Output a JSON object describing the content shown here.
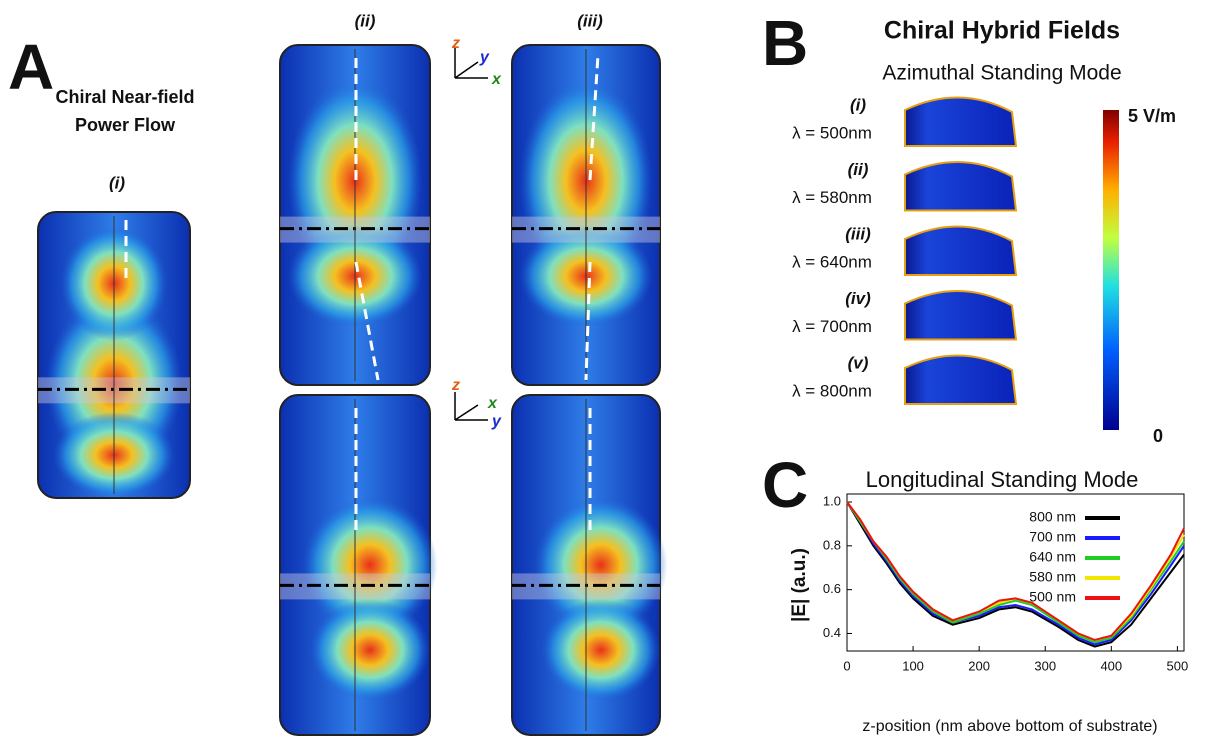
{
  "panel_a": {
    "letter": "A",
    "title_lines": [
      "Chiral Near-field",
      "Power Flow"
    ],
    "labels": [
      "(i)",
      "(ii)",
      "(iii)"
    ],
    "axes_top": [
      "z",
      "y",
      "x"
    ],
    "axes_bottom": [
      "z",
      "x",
      "y"
    ]
  },
  "panel_b": {
    "letter": "B",
    "title": "Chiral Hybrid Fields",
    "subtitle": "Azimuthal Standing Mode",
    "rows": [
      {
        "label": "(i)",
        "wavelength": "λ = 500nm"
      },
      {
        "label": "(ii)",
        "wavelength": "λ = 580nm"
      },
      {
        "label": "(iii)",
        "wavelength": "λ = 640nm"
      },
      {
        "label": "(iv)",
        "wavelength": "λ = 700nm"
      },
      {
        "label": "(v)",
        "wavelength": "λ = 800nm"
      }
    ],
    "colorbar_max": "5 V/m",
    "colorbar_min": "0"
  },
  "panel_c": {
    "letter": "C"
  },
  "chart_data": {
    "type": "line",
    "title": "Longitudinal Standing Mode",
    "x_label": "z-position (nm above bottom of substrate)",
    "y_label": "|E| (a.u.)",
    "x": [
      0,
      20,
      40,
      60,
      80,
      100,
      130,
      160,
      200,
      230,
      255,
      280,
      320,
      350,
      375,
      400,
      430,
      460,
      490,
      510
    ],
    "series": [
      {
        "name": "800 nm",
        "color": "#000000",
        "values": [
          1.0,
          0.9,
          0.8,
          0.72,
          0.63,
          0.56,
          0.48,
          0.44,
          0.47,
          0.51,
          0.52,
          0.5,
          0.43,
          0.37,
          0.34,
          0.36,
          0.44,
          0.56,
          0.68,
          0.76
        ]
      },
      {
        "name": "700 nm",
        "color": "#1a1aff",
        "values": [
          1.0,
          0.91,
          0.81,
          0.73,
          0.64,
          0.57,
          0.49,
          0.45,
          0.48,
          0.52,
          0.53,
          0.51,
          0.44,
          0.38,
          0.35,
          0.37,
          0.46,
          0.58,
          0.71,
          0.8
        ]
      },
      {
        "name": "640 nm",
        "color": "#22cc22",
        "values": [
          1.0,
          0.91,
          0.82,
          0.74,
          0.65,
          0.58,
          0.5,
          0.45,
          0.49,
          0.53,
          0.55,
          0.53,
          0.45,
          0.39,
          0.36,
          0.38,
          0.47,
          0.6,
          0.73,
          0.82
        ]
      },
      {
        "name": "580 nm",
        "color": "#f2e600",
        "values": [
          1.0,
          0.92,
          0.82,
          0.75,
          0.66,
          0.59,
          0.51,
          0.46,
          0.5,
          0.54,
          0.56,
          0.54,
          0.46,
          0.4,
          0.37,
          0.39,
          0.48,
          0.61,
          0.75,
          0.85
        ]
      },
      {
        "name": "500 nm",
        "color": "#ee1111",
        "values": [
          1.0,
          0.92,
          0.82,
          0.75,
          0.66,
          0.59,
          0.51,
          0.46,
          0.5,
          0.55,
          0.56,
          0.54,
          0.46,
          0.4,
          0.37,
          0.39,
          0.49,
          0.62,
          0.76,
          0.88
        ]
      }
    ],
    "xlim": [
      0,
      510
    ],
    "ylim": [
      0.32,
      1.0
    ],
    "xticks": [
      0,
      100,
      200,
      300,
      400,
      500
    ],
    "yticks": [
      0.4,
      0.6,
      0.8,
      {
        "value": 1,
        "label": "1.0"
      }
    ],
    "legend": "upper right"
  }
}
